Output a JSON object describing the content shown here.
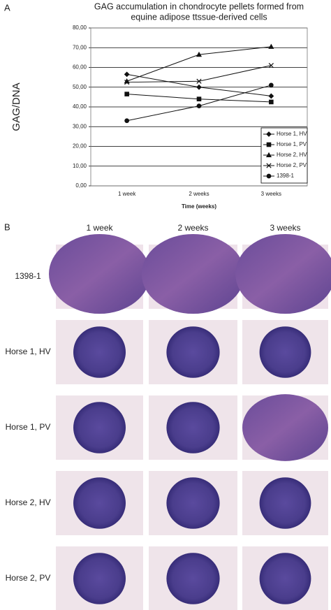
{
  "panel_labels": [
    "A",
    "B"
  ],
  "chart_data": {
    "type": "line",
    "title": [
      "GAG accumulation in chondrocyte pellets formed from",
      "equine adipose ttssue-derived cells"
    ],
    "y_label": "GAG/DNA",
    "x_label": "Time (weeks)",
    "categories": [
      "1 week",
      "2 weeks",
      "3 weeks"
    ],
    "ylim": [
      0,
      80
    ],
    "yticks": [
      {
        "value": 0,
        "label": "0,00"
      },
      {
        "value": 10,
        "label": "10,00"
      },
      {
        "value": 20,
        "label": "20,00"
      },
      {
        "value": 30,
        "label": "30,00"
      },
      {
        "value": 40,
        "label": "40,00"
      },
      {
        "value": 50,
        "label": "50,00"
      },
      {
        "value": 60,
        "label": "60,00"
      },
      {
        "value": 70,
        "label": "70,00"
      },
      {
        "value": 80,
        "label": "80,00"
      }
    ],
    "grid": true,
    "legend": "lower right",
    "series": [
      {
        "name": "Horse 1, HV",
        "color": "#111111",
        "marker": "diamond",
        "values": [
          56.5,
          50,
          45.5
        ]
      },
      {
        "name": "Horse 1, PV",
        "color": "#111111",
        "marker": "square",
        "values": [
          46.5,
          44,
          42.5
        ]
      },
      {
        "name": "Horse 2, HV",
        "color": "#111111",
        "marker": "triangle",
        "values": [
          53,
          66.5,
          70.5
        ]
      },
      {
        "name": "Horse 2, PV",
        "color": "#111111",
        "marker": "x",
        "values": [
          52.5,
          53,
          61
        ]
      },
      {
        "name": "1398-1",
        "color": "#111111",
        "marker": "circle",
        "values": [
          33,
          40.5,
          51
        ]
      }
    ]
  },
  "histology": {
    "columns": [
      "1 week",
      "2 weeks",
      "3 weeks"
    ],
    "rows": [
      "1398-1",
      "Horse 1, HV",
      "Horse 1, PV",
      "Horse 2, HV",
      "Horse 2, PV"
    ]
  }
}
